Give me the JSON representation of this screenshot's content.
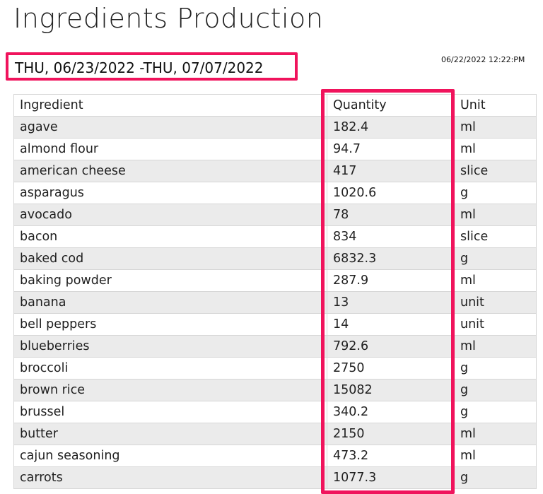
{
  "page": {
    "title": "Ingredients Production",
    "date_range": "THU, 06/23/2022 -THU, 07/07/2022",
    "timestamp": "06/22/2022 12:22:PM"
  },
  "table": {
    "headers": [
      "Ingredient",
      "Quantity",
      "Unit"
    ],
    "rows": [
      [
        "agave",
        "182.4",
        "ml"
      ],
      [
        "almond flour",
        "94.7",
        "ml"
      ],
      [
        "american cheese",
        "417",
        "slice"
      ],
      [
        "asparagus",
        "1020.6",
        "g"
      ],
      [
        "avocado",
        "78",
        "ml"
      ],
      [
        "bacon",
        "834",
        "slice"
      ],
      [
        "baked cod",
        "6832.3",
        "g"
      ],
      [
        "baking powder",
        "287.9",
        "ml"
      ],
      [
        "banana",
        "13",
        "unit"
      ],
      [
        "bell peppers",
        "14",
        "unit"
      ],
      [
        "blueberries",
        "792.6",
        "ml"
      ],
      [
        "broccoli",
        "2750",
        "g"
      ],
      [
        "brown rice",
        "15082",
        "g"
      ],
      [
        "brussel",
        "340.2",
        "g"
      ],
      [
        "butter",
        "2150",
        "ml"
      ],
      [
        "cajun seasoning",
        "473.2",
        "ml"
      ],
      [
        "carrots",
        "1077.3",
        "g"
      ]
    ]
  },
  "colors": {
    "highlight": "#f0135c",
    "row_alt": "#ebebeb"
  }
}
